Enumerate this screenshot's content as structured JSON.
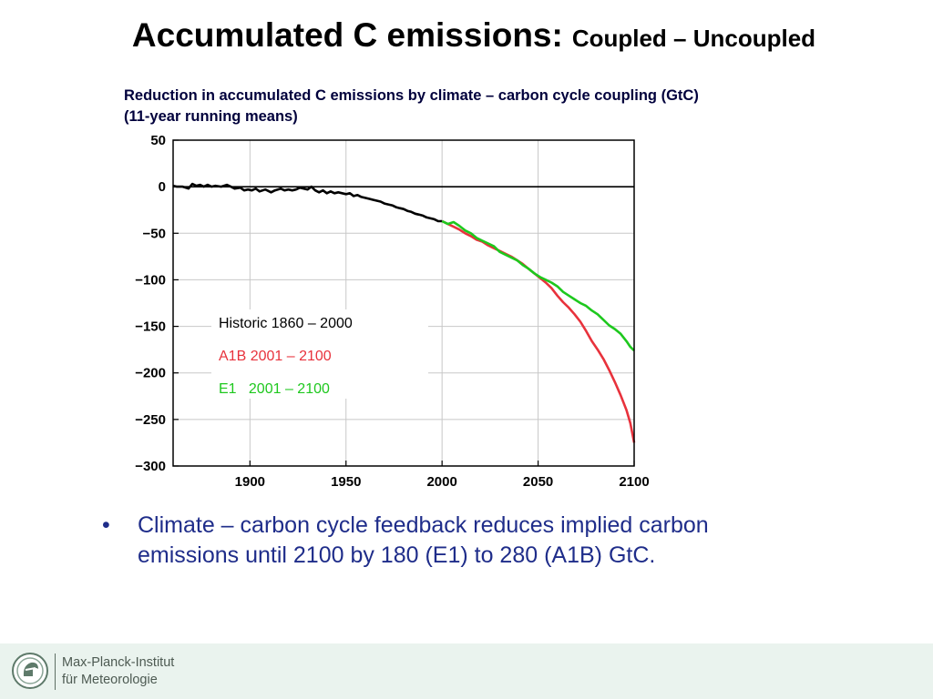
{
  "slide": {
    "title_main": "Accumulated C emissions:",
    "title_sub": "Coupled – Uncoupled",
    "caption_line1": "Reduction in accumulated C emissions by climate – carbon cycle coupling (GtC)",
    "caption_line2": "(11-year running means)",
    "bullet_marker": "•",
    "bullet_line1": "Climate – carbon cycle feedback reduces implied carbon",
    "bullet_line2": "emissions until 2100 by 180 (E1) to 280 (A1B) GtC."
  },
  "footer": {
    "org_line1": "Max-Planck-Institut",
    "org_line2": "für Meteorologie",
    "logo_icon": "mpg-minerva-logo-icon"
  },
  "chart_data": {
    "type": "line",
    "title": "Reduction in accumulated C emissions by climate – carbon cycle coupling (GtC) (11-year running means)",
    "xlabel": "",
    "ylabel": "",
    "xlim": [
      1860,
      2100
    ],
    "ylim": [
      -300,
      50
    ],
    "x_ticks": [
      1900,
      1950,
      2000,
      2050,
      2100
    ],
    "x_tick_labels": [
      "1900",
      "1950",
      "2000",
      "2050",
      "2100"
    ],
    "y_ticks": [
      50,
      0,
      -50,
      -100,
      -150,
      -200,
      -250,
      -300
    ],
    "y_tick_labels": [
      "50",
      "0",
      "−50",
      "−100",
      "−150",
      "−200",
      "−250",
      "−300"
    ],
    "grid": true,
    "reference_line": 0,
    "legend_position": "center-left",
    "series": [
      {
        "name": "Historic 1860 – 2000",
        "color": "#000000",
        "points": [
          [
            1860,
            1
          ],
          [
            1862,
            0
          ],
          [
            1865,
            0
          ],
          [
            1868,
            -2
          ],
          [
            1870,
            3
          ],
          [
            1872,
            1
          ],
          [
            1874,
            2
          ],
          [
            1876,
            0
          ],
          [
            1878,
            2
          ],
          [
            1880,
            0
          ],
          [
            1882,
            1
          ],
          [
            1885,
            0
          ],
          [
            1888,
            2
          ],
          [
            1890,
            0
          ],
          [
            1892,
            -2
          ],
          [
            1895,
            -1
          ],
          [
            1897,
            -4
          ],
          [
            1899,
            -3
          ],
          [
            1901,
            -4
          ],
          [
            1903,
            -2
          ],
          [
            1905,
            -5
          ],
          [
            1908,
            -3
          ],
          [
            1911,
            -6
          ],
          [
            1913,
            -4
          ],
          [
            1916,
            -2
          ],
          [
            1918,
            -4
          ],
          [
            1920,
            -3
          ],
          [
            1922,
            -4
          ],
          [
            1924,
            -3
          ],
          [
            1926,
            -1
          ],
          [
            1928,
            -2
          ],
          [
            1930,
            -3
          ],
          [
            1932,
            0
          ],
          [
            1934,
            -4
          ],
          [
            1936,
            -6
          ],
          [
            1938,
            -4
          ],
          [
            1940,
            -7
          ],
          [
            1942,
            -5
          ],
          [
            1944,
            -7
          ],
          [
            1946,
            -6
          ],
          [
            1948,
            -7
          ],
          [
            1950,
            -8
          ],
          [
            1952,
            -7
          ],
          [
            1954,
            -10
          ],
          [
            1956,
            -9
          ],
          [
            1958,
            -11
          ],
          [
            1960,
            -12
          ],
          [
            1962,
            -13
          ],
          [
            1964,
            -14
          ],
          [
            1966,
            -15
          ],
          [
            1968,
            -16
          ],
          [
            1970,
            -18
          ],
          [
            1972,
            -19
          ],
          [
            1974,
            -20
          ],
          [
            1976,
            -22
          ],
          [
            1978,
            -23
          ],
          [
            1980,
            -24
          ],
          [
            1982,
            -26
          ],
          [
            1984,
            -27
          ],
          [
            1986,
            -29
          ],
          [
            1988,
            -30
          ],
          [
            1990,
            -31
          ],
          [
            1992,
            -33
          ],
          [
            1994,
            -34
          ],
          [
            1996,
            -35
          ],
          [
            1998,
            -37
          ],
          [
            2000,
            -37
          ]
        ]
      },
      {
        "name": "A1B 2001 – 2100",
        "color": "#e8323c",
        "points": [
          [
            2000,
            -37
          ],
          [
            2003,
            -40
          ],
          [
            2006,
            -43
          ],
          [
            2009,
            -46
          ],
          [
            2012,
            -50
          ],
          [
            2015,
            -53
          ],
          [
            2018,
            -57
          ],
          [
            2021,
            -59
          ],
          [
            2024,
            -63
          ],
          [
            2027,
            -66
          ],
          [
            2030,
            -69
          ],
          [
            2033,
            -72
          ],
          [
            2036,
            -75
          ],
          [
            2039,
            -79
          ],
          [
            2042,
            -83
          ],
          [
            2045,
            -88
          ],
          [
            2048,
            -93
          ],
          [
            2051,
            -98
          ],
          [
            2054,
            -103
          ],
          [
            2057,
            -109
          ],
          [
            2060,
            -117
          ],
          [
            2063,
            -124
          ],
          [
            2066,
            -130
          ],
          [
            2069,
            -137
          ],
          [
            2072,
            -145
          ],
          [
            2075,
            -155
          ],
          [
            2078,
            -166
          ],
          [
            2081,
            -175
          ],
          [
            2084,
            -185
          ],
          [
            2087,
            -197
          ],
          [
            2090,
            -210
          ],
          [
            2093,
            -224
          ],
          [
            2096,
            -240
          ],
          [
            2098,
            -254
          ],
          [
            2100,
            -275
          ]
        ]
      },
      {
        "name": "E1   2001 – 2100",
        "color": "#1ec81e",
        "points": [
          [
            2000,
            -37
          ],
          [
            2003,
            -40
          ],
          [
            2006,
            -38
          ],
          [
            2009,
            -42
          ],
          [
            2012,
            -47
          ],
          [
            2015,
            -50
          ],
          [
            2018,
            -55
          ],
          [
            2021,
            -58
          ],
          [
            2024,
            -61
          ],
          [
            2027,
            -64
          ],
          [
            2030,
            -70
          ],
          [
            2033,
            -73
          ],
          [
            2036,
            -76
          ],
          [
            2039,
            -79
          ],
          [
            2042,
            -84
          ],
          [
            2045,
            -88
          ],
          [
            2048,
            -93
          ],
          [
            2051,
            -97
          ],
          [
            2054,
            -100
          ],
          [
            2057,
            -103
          ],
          [
            2060,
            -107
          ],
          [
            2063,
            -113
          ],
          [
            2066,
            -117
          ],
          [
            2069,
            -121
          ],
          [
            2072,
            -125
          ],
          [
            2075,
            -128
          ],
          [
            2078,
            -133
          ],
          [
            2081,
            -137
          ],
          [
            2084,
            -143
          ],
          [
            2087,
            -149
          ],
          [
            2090,
            -153
          ],
          [
            2093,
            -158
          ],
          [
            2096,
            -166
          ],
          [
            2098,
            -172
          ],
          [
            2100,
            -176
          ]
        ]
      }
    ]
  }
}
